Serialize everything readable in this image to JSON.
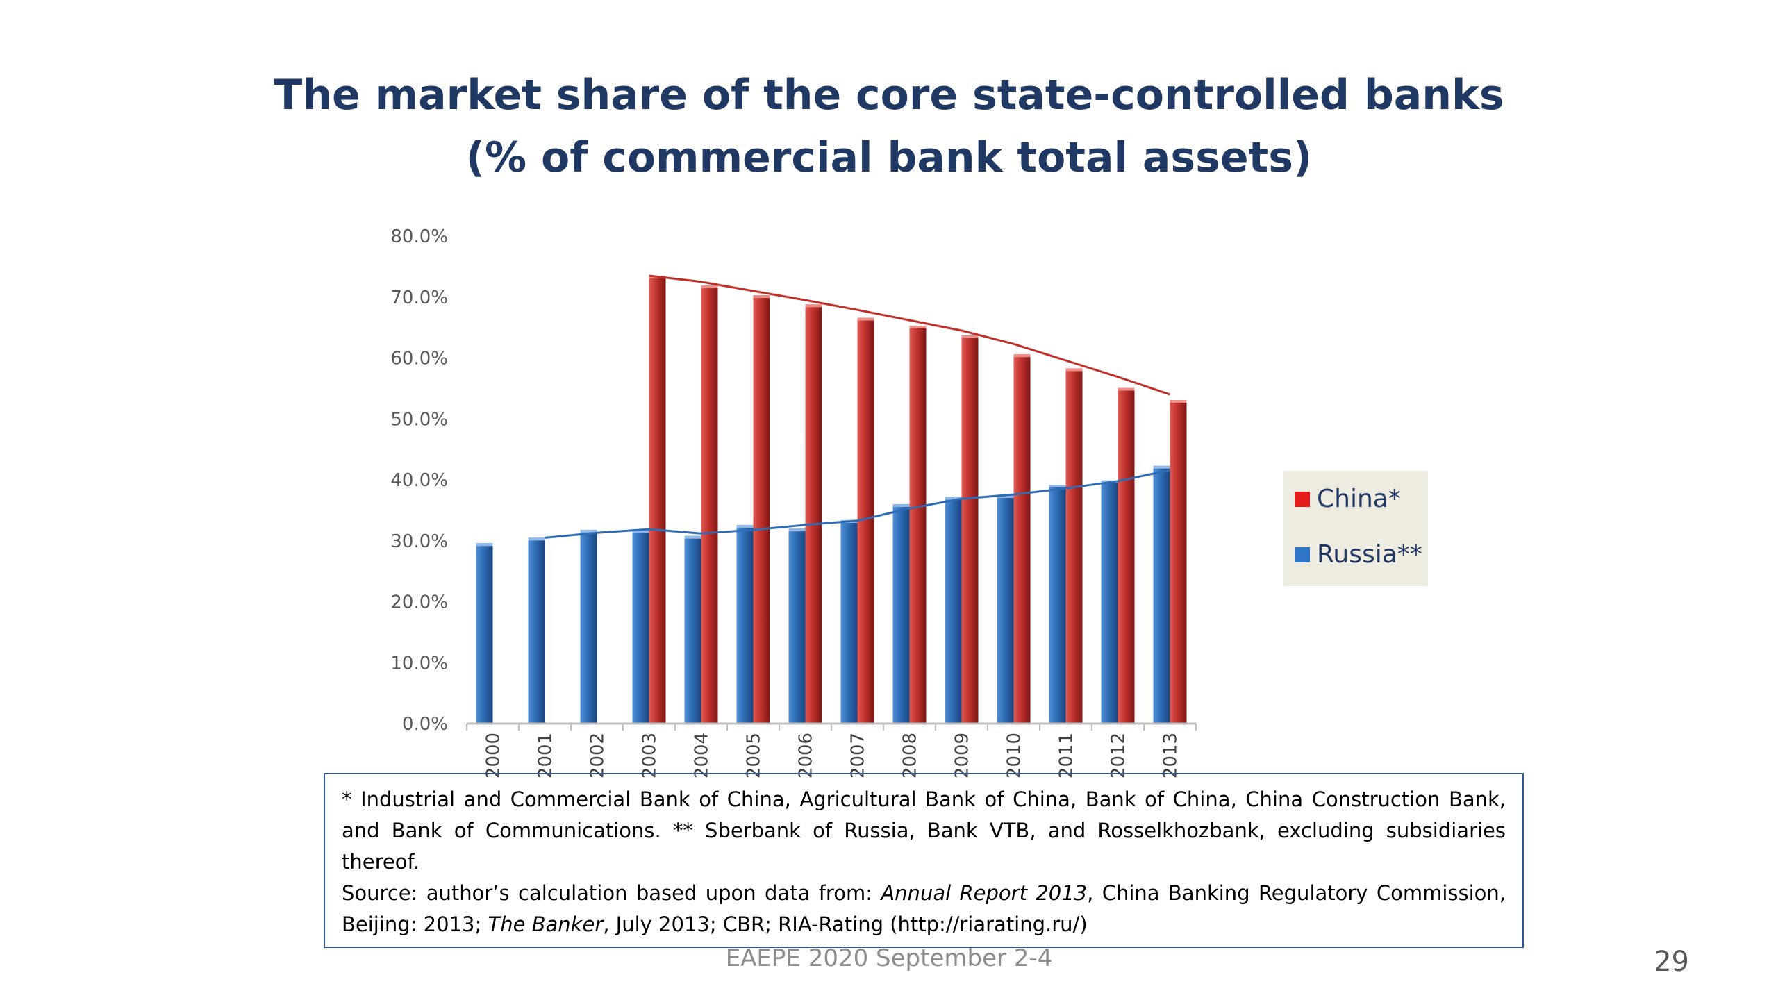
{
  "slide": {
    "title_line1": "The market share of the core state-controlled banks",
    "title_line2": "(% of commercial bank total assets)",
    "footer": "EAEPE 2020 September 2-4",
    "page_number": "29"
  },
  "notes": {
    "line1": "* Industrial and Commercial Bank of China, Agricultural Bank of China, Bank of China, China Construction Bank, and Bank of Communications. ** Sberbank of Russia, Bank VTB, and Rosselkhozbank, excluding subsidiaries thereof.",
    "source_prefix": "Source: author’s calculation based upon data from: ",
    "source_ital1": "Annual Report 2013",
    "source_mid": ", China Banking Regulatory Commission, Beijing: 2013; ",
    "source_ital2": "The Banker",
    "source_end": ", July 2013; CBR; RIA-Rating (http://riarating.ru/)"
  },
  "colors": {
    "china": "#c0302b",
    "russia": "#2e6db5",
    "axis": "#bfbfbf"
  },
  "chart_data": {
    "type": "bar",
    "title": "The market share of the core state-controlled banks (% of commercial bank total assets)",
    "xlabel": "",
    "ylabel": "",
    "ylim": [
      0,
      80
    ],
    "yticks": [
      "0.0%",
      "10.0%",
      "20.0%",
      "30.0%",
      "40.0%",
      "50.0%",
      "60.0%",
      "70.0%",
      "80.0%"
    ],
    "categories": [
      "2000",
      "2001",
      "2002",
      "2003",
      "2004",
      "2005",
      "2006",
      "2007",
      "2008",
      "2009",
      "2010",
      "2011",
      "2012",
      "2013"
    ],
    "series": [
      {
        "name": "Russia**",
        "color": "#2e6db5",
        "values": [
          29.6,
          30.5,
          31.8,
          31.8,
          30.8,
          32.6,
          32.0,
          33.4,
          36.0,
          37.2,
          37.5,
          39.2,
          39.9,
          42.3
        ]
      },
      {
        "name": "China*",
        "color": "#c0302b",
        "values": [
          null,
          null,
          null,
          73.5,
          71.9,
          70.3,
          68.8,
          66.6,
          65.3,
          63.7,
          60.6,
          58.3,
          55.1,
          53.1
        ]
      }
    ],
    "trendlines": [
      {
        "series": "China*",
        "values": [
          null,
          null,
          null,
          73.5,
          72.5,
          71.0,
          69.5,
          67.9,
          66.2,
          64.5,
          62.3,
          59.6,
          56.9,
          54.0
        ]
      },
      {
        "series": "Russia**",
        "values": [
          null,
          30.5,
          31.3,
          31.9,
          31.2,
          31.8,
          32.6,
          33.3,
          35.3,
          36.9,
          37.6,
          38.6,
          39.8,
          41.6
        ]
      }
    ],
    "legend": {
      "position": "right",
      "entries": [
        "China*",
        "Russia**"
      ]
    }
  }
}
